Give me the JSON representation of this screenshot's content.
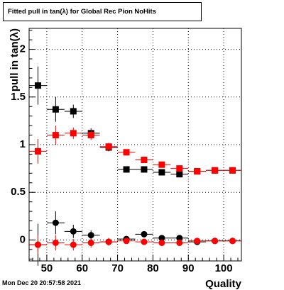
{
  "title": "Fitted pull in tan(λ) for Global Rec Pion NoHits",
  "timestamp": "Mon Dec 20 20:57:58 2021",
  "chart_data": {
    "type": "scatter",
    "title": "Fitted pull in tan(λ) for Global Rec Pion NoHits",
    "xlabel": "Quality",
    "ylabel": "pull in tan(λ)",
    "xlim": [
      45,
      105
    ],
    "ylim": [
      -0.22,
      2.22
    ],
    "x_ticks": [
      50,
      60,
      70,
      80,
      90,
      100
    ],
    "y_ticks": [
      0,
      0.5,
      1,
      1.5,
      2
    ],
    "x_tick_labels": [
      "50",
      "60",
      "70",
      "80",
      "90",
      "100"
    ],
    "y_tick_labels": [
      "0",
      "0.5",
      "1",
      "1.5",
      "2"
    ],
    "grid": true,
    "bin_width": 5,
    "series": [
      {
        "marker": "square",
        "color": "#000000",
        "points": [
          {
            "x": 47.5,
            "y": 1.62,
            "err": 0.2
          },
          {
            "x": 52.5,
            "y": 1.37,
            "err": 0.13
          },
          {
            "x": 57.5,
            "y": 1.35,
            "err": 0.07
          },
          {
            "x": 62.5,
            "y": 1.12,
            "err": 0.05
          },
          {
            "x": 67.5,
            "y": 0.97,
            "err": 0.04
          },
          {
            "x": 72.5,
            "y": 0.74,
            "err": 0.025
          },
          {
            "x": 77.5,
            "y": 0.74,
            "err": 0.02
          },
          {
            "x": 82.5,
            "y": 0.71,
            "err": 0.02
          },
          {
            "x": 87.5,
            "y": 0.69,
            "err": 0.02
          },
          {
            "x": 92.5,
            "y": 0.72,
            "err": 0.015
          },
          {
            "x": 97.5,
            "y": 0.73,
            "err": 0.01
          },
          {
            "x": 102.5,
            "y": 0.73,
            "err": 0.01
          }
        ]
      },
      {
        "marker": "square",
        "color": "#ff0000",
        "points": [
          {
            "x": 47.5,
            "y": 0.93,
            "err": 0.13
          },
          {
            "x": 52.5,
            "y": 1.1,
            "err": 0.1
          },
          {
            "x": 57.5,
            "y": 1.12,
            "err": 0.06
          },
          {
            "x": 62.5,
            "y": 1.1,
            "err": 0.05
          },
          {
            "x": 67.5,
            "y": 0.98,
            "err": 0.04
          },
          {
            "x": 72.5,
            "y": 0.92,
            "err": 0.03
          },
          {
            "x": 77.5,
            "y": 0.84,
            "err": 0.025
          },
          {
            "x": 82.5,
            "y": 0.79,
            "err": 0.02
          },
          {
            "x": 87.5,
            "y": 0.75,
            "err": 0.02
          },
          {
            "x": 92.5,
            "y": 0.72,
            "err": 0.015
          },
          {
            "x": 97.5,
            "y": 0.73,
            "err": 0.01
          },
          {
            "x": 102.5,
            "y": 0.73,
            "err": 0.01
          }
        ]
      },
      {
        "marker": "circle",
        "color": "#000000",
        "points": [
          {
            "x": 47.5,
            "y": -0.05,
            "err": 0.22
          },
          {
            "x": 52.5,
            "y": 0.18,
            "err": 0.12
          },
          {
            "x": 57.5,
            "y": 0.09,
            "err": 0.07
          },
          {
            "x": 62.5,
            "y": 0.05,
            "err": 0.05
          },
          {
            "x": 67.5,
            "y": -0.02,
            "err": 0.04
          },
          {
            "x": 72.5,
            "y": 0.01,
            "err": 0.03
          },
          {
            "x": 77.5,
            "y": 0.06,
            "err": 0.03
          },
          {
            "x": 82.5,
            "y": 0.02,
            "err": 0.02
          },
          {
            "x": 87.5,
            "y": 0.02,
            "err": 0.02
          },
          {
            "x": 92.5,
            "y": -0.02,
            "err": 0.015
          },
          {
            "x": 97.5,
            "y": -0.01,
            "err": 0.01
          },
          {
            "x": 102.5,
            "y": -0.01,
            "err": 0.01
          }
        ]
      },
      {
        "marker": "circle",
        "color": "#ff0000",
        "points": [
          {
            "x": 47.5,
            "y": -0.05,
            "err": 0.1
          },
          {
            "x": 52.5,
            "y": -0.03,
            "err": 0.08
          },
          {
            "x": 57.5,
            "y": -0.05,
            "err": 0.06
          },
          {
            "x": 62.5,
            "y": -0.03,
            "err": 0.05
          },
          {
            "x": 67.5,
            "y": -0.02,
            "err": 0.04
          },
          {
            "x": 72.5,
            "y": -0.01,
            "err": 0.03
          },
          {
            "x": 77.5,
            "y": -0.02,
            "err": 0.02
          },
          {
            "x": 82.5,
            "y": -0.03,
            "err": 0.02
          },
          {
            "x": 87.5,
            "y": -0.03,
            "err": 0.02
          },
          {
            "x": 92.5,
            "y": -0.01,
            "err": 0.015
          },
          {
            "x": 97.5,
            "y": -0.01,
            "err": 0.01
          },
          {
            "x": 102.5,
            "y": -0.01,
            "err": 0.01
          }
        ]
      }
    ]
  }
}
